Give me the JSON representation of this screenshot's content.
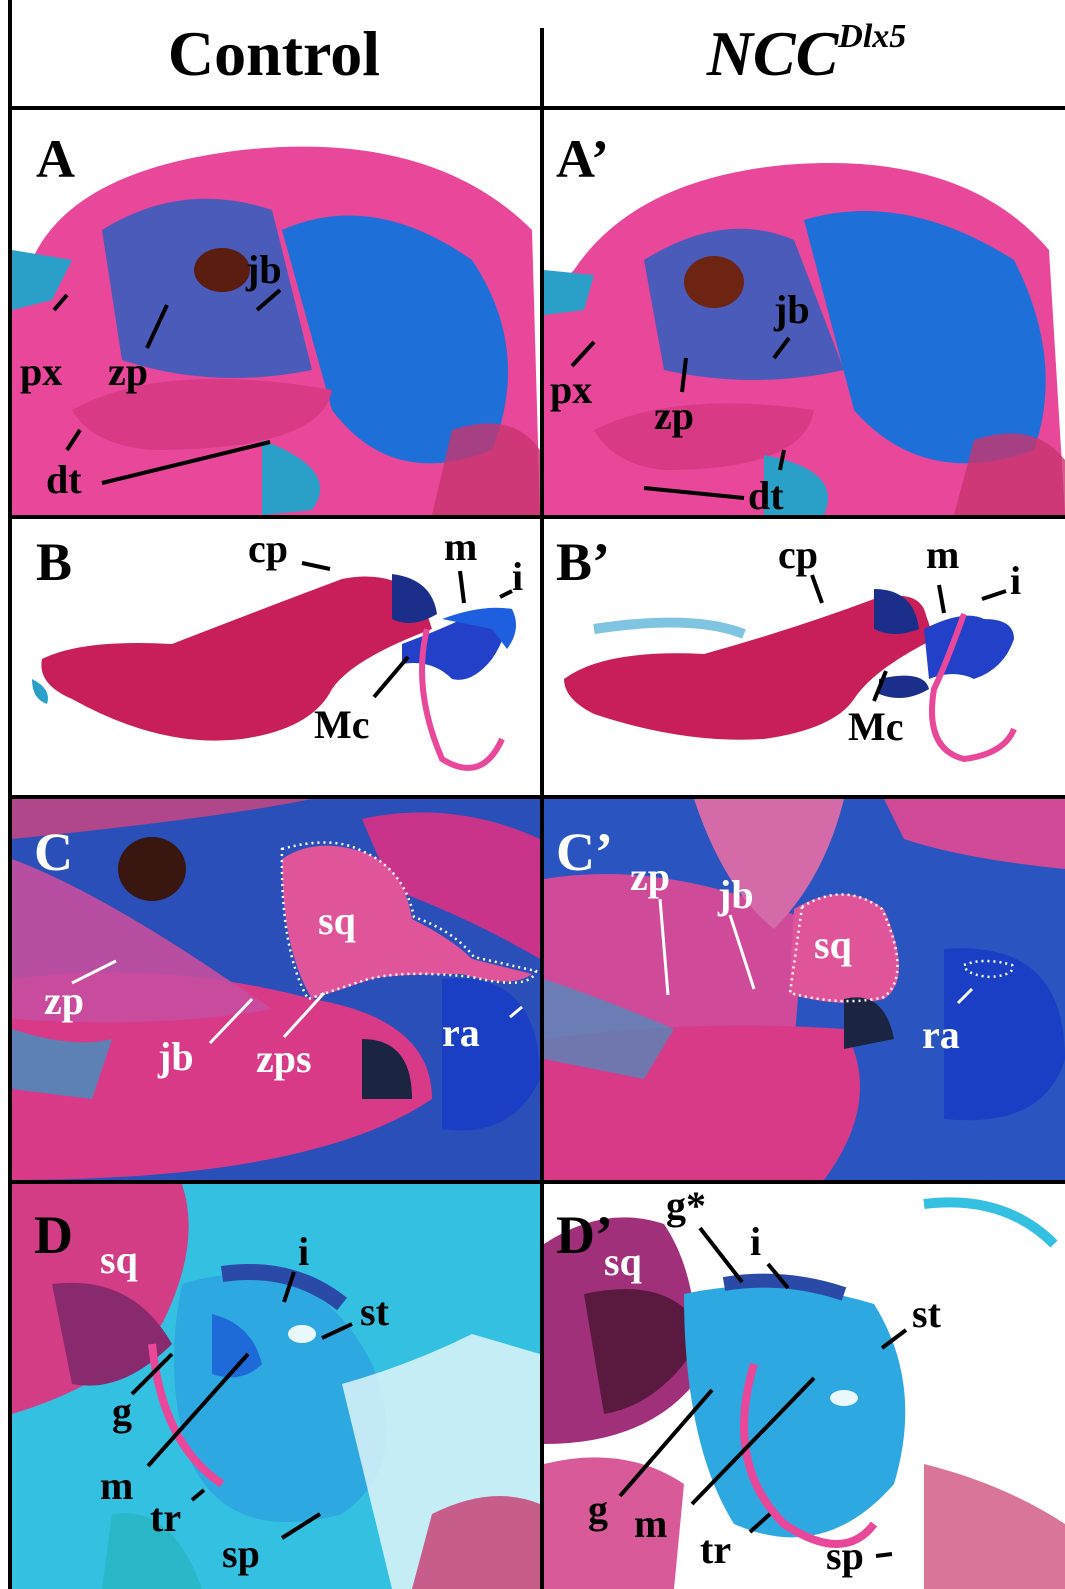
{
  "columns": {
    "control": "Control",
    "mutant_base": "NCC",
    "mutant_sup": "Dlx5"
  },
  "panels": {
    "A": {
      "label": "A",
      "annotations": [
        "jb",
        "px",
        "zp",
        "dt"
      ]
    },
    "A2": {
      "label": "A’",
      "annotations": [
        "jb",
        "px",
        "zp",
        "dt"
      ]
    },
    "B": {
      "label": "B",
      "annotations": [
        "cp",
        "m",
        "i",
        "Mc"
      ]
    },
    "B2": {
      "label": "B’",
      "annotations": [
        "cp",
        "m",
        "i",
        "Mc"
      ]
    },
    "C": {
      "label": "C",
      "annotations": [
        "sq",
        "zp",
        "jb",
        "zps",
        "ra"
      ]
    },
    "C2": {
      "label": "C’",
      "annotations": [
        "zp",
        "jb",
        "sq",
        "ra"
      ]
    },
    "D": {
      "label": "D",
      "annotations": [
        "sq",
        "i",
        "st",
        "g",
        "m",
        "tr",
        "sp"
      ]
    },
    "D2": {
      "label": "D’",
      "annotations": [
        "g*",
        "i",
        "sq",
        "st",
        "g",
        "m",
        "tr",
        "sp"
      ]
    }
  },
  "colors": {
    "cartilage": "#1f5fd6",
    "bone": "#e0307a",
    "eye": "#5a1d10"
  }
}
